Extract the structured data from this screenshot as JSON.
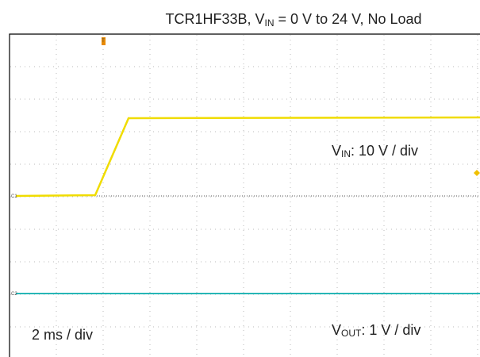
{
  "title": {
    "main": "TCR1HF33B, V",
    "sub": "IN",
    "rest": " = 0 V to 24 V, No Load"
  },
  "vin_label": {
    "main": "V",
    "sub": "IN",
    "rest": ": 10 V / div"
  },
  "vout_label": {
    "main": "V",
    "sub": "OUT",
    "rest": ": 1 V / div"
  },
  "time_label": "2 ms / div",
  "channel_tags": [
    "C1",
    "C2"
  ],
  "trigger_tag": "T"
}
